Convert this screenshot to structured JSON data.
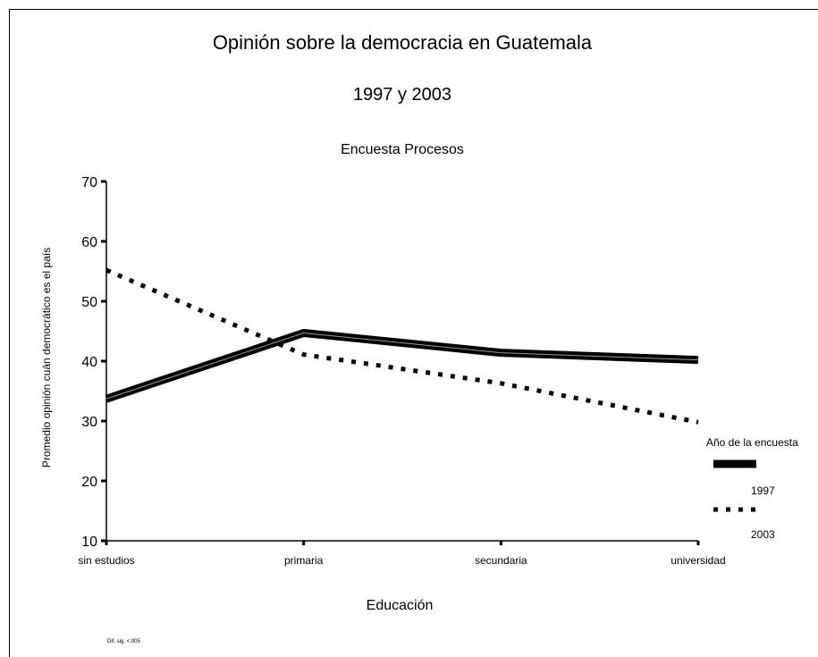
{
  "chart_data": {
    "type": "line",
    "title": "Opinión sobre la democracia en Guatemala",
    "subtitle": "1997 y 2003",
    "source_title": "Encuesta Procesos",
    "xlabel": "Educación",
    "ylabel": "Promedio opinión cuán democrático es el país",
    "categories": [
      "sin estudios",
      "primaria",
      "secundaria",
      "universidad"
    ],
    "ylim": [
      10,
      70
    ],
    "yticks": [
      "10",
      "20",
      "30",
      "40",
      "50",
      "60",
      "70"
    ],
    "series": [
      {
        "name": "1997",
        "values": [
          33.7,
          44.7,
          41.4,
          40.2
        ],
        "style": "solid-thick"
      },
      {
        "name": "2003",
        "values": [
          55.2,
          41.1,
          36.3,
          29.8
        ],
        "style": "dotted"
      }
    ],
    "legend": {
      "title": "Año de la encuesta",
      "position": "right"
    },
    "grid": false,
    "footnote": "Dif. sig. <.005",
    "colors": {
      "line": "#000000",
      "background": "#ffffff"
    }
  }
}
